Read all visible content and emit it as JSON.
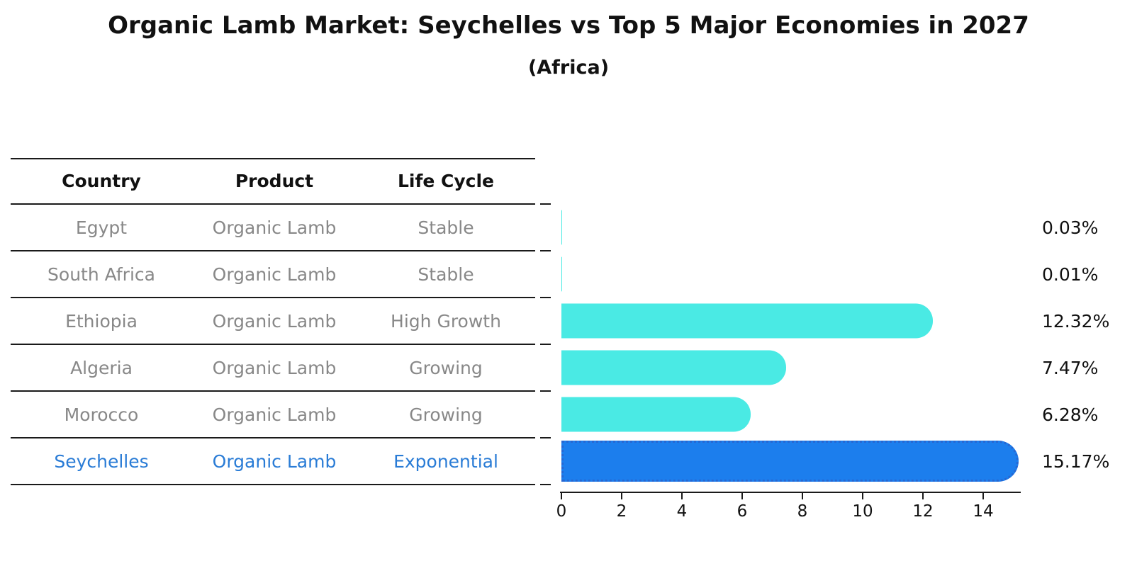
{
  "chart_data": {
    "type": "bar",
    "orientation": "horizontal",
    "title": "Organic Lamb Market: Seychelles vs Top 5 Major Economies in 2027",
    "subtitle": "(Africa)",
    "categories": [
      "Egypt",
      "South Africa",
      "Ethiopia",
      "Algeria",
      "Morocco",
      "Seychelles"
    ],
    "values": [
      0.03,
      0.01,
      12.32,
      7.47,
      6.28,
      15.17
    ],
    "value_labels": [
      "0.03%",
      "0.01%",
      "12.32%",
      "7.47%",
      "6.28%",
      "15.17%"
    ],
    "xticks": [
      "0",
      "2",
      "4",
      "6",
      "8",
      "10",
      "12",
      "14"
    ],
    "xlim": [
      0,
      15.4
    ],
    "xlabel": "",
    "grid": false,
    "legend": false,
    "highlight_category": "Seychelles",
    "highlight_index": 5,
    "colors": {
      "bar": "#4AEAE4",
      "highlight_bar": "#1C7EED",
      "highlight_bar_border": "#2767D2",
      "highlight_text": "#2A7CD6",
      "table_text": "#888888",
      "heading_text": "#111111",
      "axis": "#1A1A1A"
    }
  },
  "table": {
    "headers": [
      "Country",
      "Product",
      "Life Cycle"
    ],
    "rows": [
      {
        "country": "Egypt",
        "product": "Organic Lamb",
        "life_cycle": "Stable"
      },
      {
        "country": "South Africa",
        "product": "Organic Lamb",
        "life_cycle": "Stable"
      },
      {
        "country": "Ethiopia",
        "product": "Organic Lamb",
        "life_cycle": "High Growth"
      },
      {
        "country": "Algeria",
        "product": "Organic Lamb",
        "life_cycle": "Growing"
      },
      {
        "country": "Morocco",
        "product": "Organic Lamb",
        "life_cycle": "Growing"
      },
      {
        "country": "Seychelles",
        "product": "Organic Lamb",
        "life_cycle": "Exponential"
      }
    ]
  }
}
